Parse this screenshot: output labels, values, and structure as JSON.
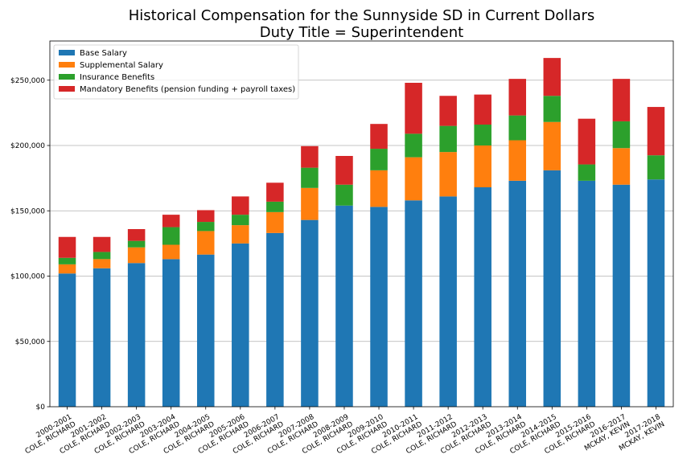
{
  "chart_data": {
    "type": "bar",
    "stacked": true,
    "title": [
      "Historical Compensation for the Sunnyside SD in Current Dollars",
      "Duty Title = Superintendent"
    ],
    "xlabel": "",
    "ylabel": "",
    "ylim": [
      0,
      280000
    ],
    "yticks": [
      0,
      50000,
      100000,
      150000,
      200000,
      250000
    ],
    "ytick_labels": [
      "$0",
      "$50,000",
      "$100,000",
      "$150,000",
      "$200,000",
      "$250,000"
    ],
    "grid": "horizontal",
    "legend_position": "top-left",
    "categories": [
      [
        "2000-2001",
        "COLE, RICHARD"
      ],
      [
        "2001-2002",
        "COLE, RICHARD"
      ],
      [
        "2002-2003",
        "COLE, RICHARD"
      ],
      [
        "2003-2004",
        "COLE, RICHARD"
      ],
      [
        "2004-2005",
        "COLE, RICHARD"
      ],
      [
        "2005-2006",
        "COLE, RICHARD"
      ],
      [
        "2006-2007",
        "COLE, RICHARD"
      ],
      [
        "2007-2008",
        "COLE, RICHARD"
      ],
      [
        "2008-2009",
        "COLE, RICHARD"
      ],
      [
        "2009-2010",
        "COLE, RICHARD"
      ],
      [
        "2010-2011",
        "COLE, RICHARD"
      ],
      [
        "2011-2012",
        "COLE, RICHARD"
      ],
      [
        "2012-2013",
        "COLE, RICHARD"
      ],
      [
        "2013-2014",
        "COLE, RICHARD"
      ],
      [
        "2014-2015",
        "COLE, RICHARD"
      ],
      [
        "2015-2016",
        "COLE, RICHARD"
      ],
      [
        "2016-2017",
        "MCKAY, KEVIN"
      ],
      [
        "2017-2018",
        "MCKAY, KEVIN"
      ]
    ],
    "series": [
      {
        "name": "Base Salary",
        "color": "#1f77b4",
        "values": [
          102000,
          106000,
          110000,
          113000,
          116500,
          125000,
          133000,
          143000,
          154000,
          153000,
          158000,
          161000,
          168000,
          173000,
          181000,
          173000,
          170000,
          174000
        ]
      },
      {
        "name": "Supplemental Salary",
        "color": "#ff7f0e",
        "values": [
          7000,
          7000,
          12000,
          11000,
          18000,
          14000,
          16000,
          24500,
          0,
          28000,
          33000,
          34000,
          32000,
          31000,
          37000,
          0,
          28000,
          0
        ]
      },
      {
        "name": "Insurance Benefits",
        "color": "#2ca02c",
        "values": [
          5000,
          5500,
          5000,
          13500,
          7000,
          8000,
          8000,
          15500,
          16000,
          16500,
          18000,
          20000,
          16000,
          19000,
          20000,
          12500,
          20500,
          18500
        ]
      },
      {
        "name": "Mandatory Benefits (pension funding + payroll taxes)",
        "color": "#d62728",
        "values": [
          16000,
          11500,
          9000,
          9500,
          9000,
          14000,
          14500,
          16500,
          22000,
          19000,
          39000,
          23000,
          23000,
          28000,
          29000,
          35000,
          32500,
          37000
        ]
      }
    ]
  }
}
